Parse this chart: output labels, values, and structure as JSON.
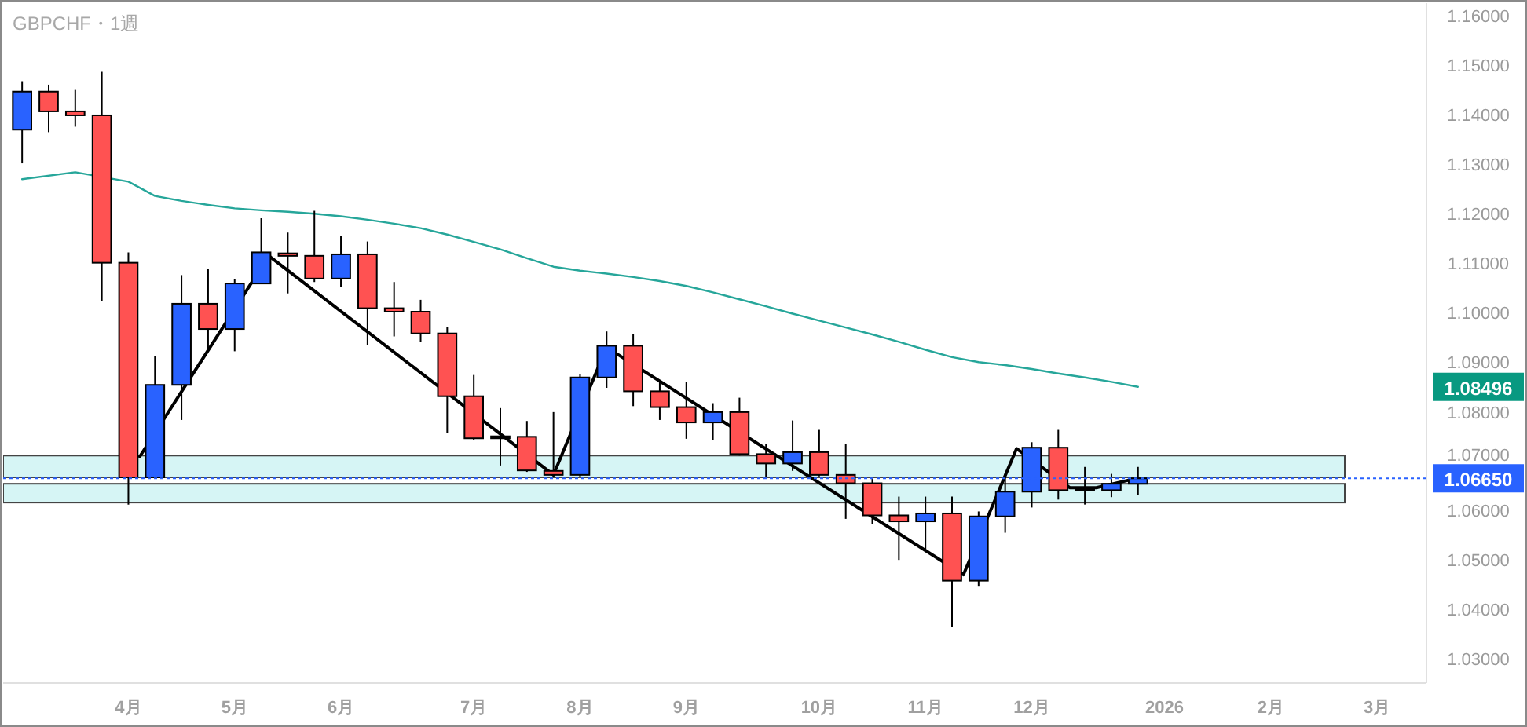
{
  "chart_data": {
    "type": "candlestick",
    "title": "GBPCHF・1週",
    "x": [
      "2025-03-10",
      "2025-03-17",
      "2025-03-24",
      "2025-03-31",
      "2025-04-07",
      "2025-04-14",
      "2025-04-21",
      "2025-04-28",
      "2025-05-05",
      "2025-05-12",
      "2025-05-19",
      "2025-05-26",
      "2025-06-02",
      "2025-06-09",
      "2025-06-16",
      "2025-06-23",
      "2025-06-30",
      "2025-07-07",
      "2025-07-14",
      "2025-07-21",
      "2025-07-28",
      "2025-08-04",
      "2025-08-11",
      "2025-08-18",
      "2025-08-25",
      "2025-09-01",
      "2025-09-08",
      "2025-09-15",
      "2025-09-22",
      "2025-09-29",
      "2025-10-06",
      "2025-10-13",
      "2025-10-20",
      "2025-10-27",
      "2025-11-03",
      "2025-11-10",
      "2025-11-17",
      "2025-11-24",
      "2025-12-01",
      "2025-12-08",
      "2025-12-15",
      "2025-12-22",
      "2025-12-29"
    ],
    "ohlc": [
      [
        1.137,
        1.1468,
        1.1302,
        1.1447
      ],
      [
        1.1447,
        1.1461,
        1.1365,
        1.1407
      ],
      [
        1.1407,
        1.1452,
        1.1376,
        1.1399
      ],
      [
        1.1399,
        1.1487,
        1.1023,
        1.1101
      ],
      [
        1.1101,
        1.1122,
        1.0612,
        1.0667
      ],
      [
        1.0667,
        1.0912,
        1.0665,
        1.0854
      ],
      [
        1.0854,
        1.1076,
        1.0783,
        1.1018
      ],
      [
        1.1018,
        1.1089,
        1.0922,
        1.0967
      ],
      [
        1.0967,
        1.1068,
        1.0922,
        1.1059
      ],
      [
        1.1059,
        1.1191,
        1.1059,
        1.1122
      ],
      [
        1.112,
        1.1162,
        1.1039,
        1.1115
      ],
      [
        1.1115,
        1.1206,
        1.1062,
        1.1069
      ],
      [
        1.1069,
        1.1155,
        1.1052,
        1.1118
      ],
      [
        1.1118,
        1.1144,
        1.0935,
        1.1009
      ],
      [
        1.1009,
        1.1062,
        1.0952,
        1.1002
      ],
      [
        1.1002,
        1.1026,
        1.0941,
        1.0958
      ],
      [
        1.0958,
        1.0971,
        1.0757,
        1.0831
      ],
      [
        1.0831,
        1.0874,
        1.0743,
        1.0746
      ],
      [
        1.075,
        1.0807,
        1.0691,
        1.0746
      ],
      [
        1.0749,
        1.0781,
        1.0678,
        1.0681
      ],
      [
        1.068,
        1.0799,
        1.0667,
        1.0672
      ],
      [
        1.0672,
        1.0876,
        1.0667,
        1.0869
      ],
      [
        1.0869,
        1.0962,
        1.0848,
        1.0933
      ],
      [
        1.0933,
        1.0956,
        1.0811,
        1.0841
      ],
      [
        1.0841,
        1.0864,
        1.0783,
        1.0809
      ],
      [
        1.0809,
        1.086,
        1.0745,
        1.0778
      ],
      [
        1.0778,
        1.0817,
        1.0743,
        1.0799
      ],
      [
        1.0799,
        1.0828,
        1.0711,
        1.0714
      ],
      [
        1.0714,
        1.0734,
        1.0667,
        1.0695
      ],
      [
        1.0695,
        1.0782,
        1.068,
        1.0718
      ],
      [
        1.0718,
        1.0763,
        1.0669,
        1.0672
      ],
      [
        1.0672,
        1.0734,
        1.0583,
        1.0655
      ],
      [
        1.0655,
        1.0665,
        1.0572,
        1.059
      ],
      [
        1.059,
        1.0628,
        1.05,
        1.0578
      ],
      [
        1.0578,
        1.0628,
        1.0516,
        1.0594
      ],
      [
        1.0594,
        1.0628,
        1.0365,
        1.0458
      ],
      [
        1.0458,
        1.0598,
        1.0446,
        1.0588
      ],
      [
        1.0588,
        1.0674,
        1.0555,
        1.0638
      ],
      [
        1.0638,
        1.0738,
        1.0606,
        1.0727
      ],
      [
        1.0727,
        1.0763,
        1.0622,
        1.0641
      ],
      [
        1.0644,
        1.0688,
        1.0612,
        1.0642
      ],
      [
        1.0641,
        1.0674,
        1.0627,
        1.0654
      ],
      [
        1.0654,
        1.0688,
        1.0632,
        1.0665
      ]
    ],
    "colors": [
      "#2962ff",
      "#ff5252",
      "#ff5252",
      "#ff5252",
      "#ff5252",
      "#2962ff",
      "#2962ff",
      "#ff5252",
      "#2962ff",
      "#2962ff",
      "#ff5252",
      "#ff5252",
      "#2962ff",
      "#ff5252",
      "#ff5252",
      "#ff5252",
      "#ff5252",
      "#ff5252",
      "#000000",
      "#ff5252",
      "#ff5252",
      "#2962ff",
      "#2962ff",
      "#ff5252",
      "#ff5252",
      "#ff5252",
      "#2962ff",
      "#ff5252",
      "#ff5252",
      "#2962ff",
      "#ff5252",
      "#ff5252",
      "#ff5252",
      "#ff5252",
      "#2962ff",
      "#ff5252",
      "#2962ff",
      "#2962ff",
      "#2962ff",
      "#ff5252",
      "#000000",
      "#2962ff",
      "#2962ff"
    ],
    "series": [
      {
        "type": "line",
        "color": "#26a69a",
        "x": [
          "2025-03-10",
          "2025-03-24",
          "2025-04-07",
          "2025-04-14",
          "2025-04-21",
          "2025-04-28",
          "2025-05-05",
          "2025-05-12",
          "2025-05-19",
          "2025-05-26",
          "2025-06-02",
          "2025-06-09",
          "2025-06-16",
          "2025-06-23",
          "2025-06-30",
          "2025-07-07",
          "2025-07-14",
          "2025-07-21",
          "2025-07-28",
          "2025-08-04",
          "2025-08-11",
          "2025-08-18",
          "2025-08-25",
          "2025-09-01",
          "2025-09-08",
          "2025-09-15",
          "2025-09-22",
          "2025-09-29",
          "2025-10-06",
          "2025-10-13",
          "2025-10-20",
          "2025-10-27",
          "2025-11-03",
          "2025-11-10",
          "2025-11-17",
          "2025-11-24",
          "2025-12-01",
          "2025-12-08",
          "2025-12-15",
          "2025-12-22",
          "2025-12-29"
        ],
        "values": [
          1.127,
          1.1284,
          1.1265,
          1.1236,
          1.1226,
          1.1218,
          1.1211,
          1.1207,
          1.1204,
          1.12,
          1.1195,
          1.1188,
          1.118,
          1.1171,
          1.1158,
          1.1143,
          1.1128,
          1.111,
          1.1093,
          1.1085,
          1.1079,
          1.1072,
          1.1064,
          1.1054,
          1.1041,
          1.1027,
          1.1013,
          1.0998,
          1.0984,
          1.097,
          1.0956,
          1.0941,
          1.0925,
          1.091,
          1.09,
          1.0894,
          1.0886,
          1.0877,
          1.0869,
          1.086,
          1.085
        ]
      },
      {
        "type": "line",
        "color": "#000000",
        "x": [
          "2025-04-10",
          "2025-05-14",
          "2025-07-28",
          "2025-08-11",
          "2025-11-13",
          "2025-11-27",
          "2025-12-11",
          "2025-12-18",
          "2025-12-27"
        ],
        "values": [
          1.0709,
          1.1115,
          1.0672,
          1.093,
          1.047,
          1.0725,
          1.0646,
          1.0646,
          1.0662
        ]
      }
    ],
    "bands": [
      {
        "axis": "y",
        "from": 1.0667,
        "to": 1.0711,
        "color": "#d6f5f5"
      },
      {
        "axis": "y",
        "from": 1.0616,
        "to": 1.0654,
        "color": "#d6f5f5"
      }
    ],
    "ref_lines": [
      {
        "axis": "y",
        "value": 1.0665,
        "label": "1.06650",
        "color": "#2962ff",
        "line_style": "dotted"
      }
    ],
    "annotations": [
      "1.08496"
    ],
    "xlim": [
      "2025-03-05",
      "2026-03-15"
    ],
    "xticks": [
      {
        "value": "2025-04-07",
        "label": "4月"
      },
      {
        "value": "2025-05-05",
        "label": "5月"
      },
      {
        "value": "2025-06-02",
        "label": "6月"
      },
      {
        "value": "2025-07-07",
        "label": "7月"
      },
      {
        "value": "2025-08-04",
        "label": "8月"
      },
      {
        "value": "2025-09-01",
        "label": "9月"
      },
      {
        "value": "2025-10-06",
        "label": "10月"
      },
      {
        "value": "2025-11-03",
        "label": "11月"
      },
      {
        "value": "2025-12-01",
        "label": "12月"
      },
      {
        "value": "2026-01-05",
        "label": "2026"
      },
      {
        "value": "2026-02-02",
        "label": "2月"
      },
      {
        "value": "2026-03-02",
        "label": "3月"
      }
    ],
    "ylim": [
      1.0251,
      1.1626
    ],
    "yticks": [
      {
        "value": 1.03,
        "label": "1.03000"
      },
      {
        "value": 1.04,
        "label": "1.04000"
      },
      {
        "value": 1.05,
        "label": "1.05000"
      },
      {
        "value": 1.06,
        "label": "1.06000"
      },
      {
        "value": 1.07,
        "label": "1.07000"
      },
      {
        "value": 1.08,
        "label": "1.08000"
      },
      {
        "value": 1.09,
        "label": "1.09000"
      },
      {
        "value": 1.1,
        "label": "1.10000"
      },
      {
        "value": 1.11,
        "label": "1.11000"
      },
      {
        "value": 1.12,
        "label": "1.12000"
      },
      {
        "value": 1.13,
        "label": "1.13000"
      },
      {
        "value": 1.14,
        "label": "1.14000"
      },
      {
        "value": 1.15,
        "label": "1.15000"
      },
      {
        "value": 1.16,
        "label": "1.16000"
      }
    ],
    "grid": false
  }
}
